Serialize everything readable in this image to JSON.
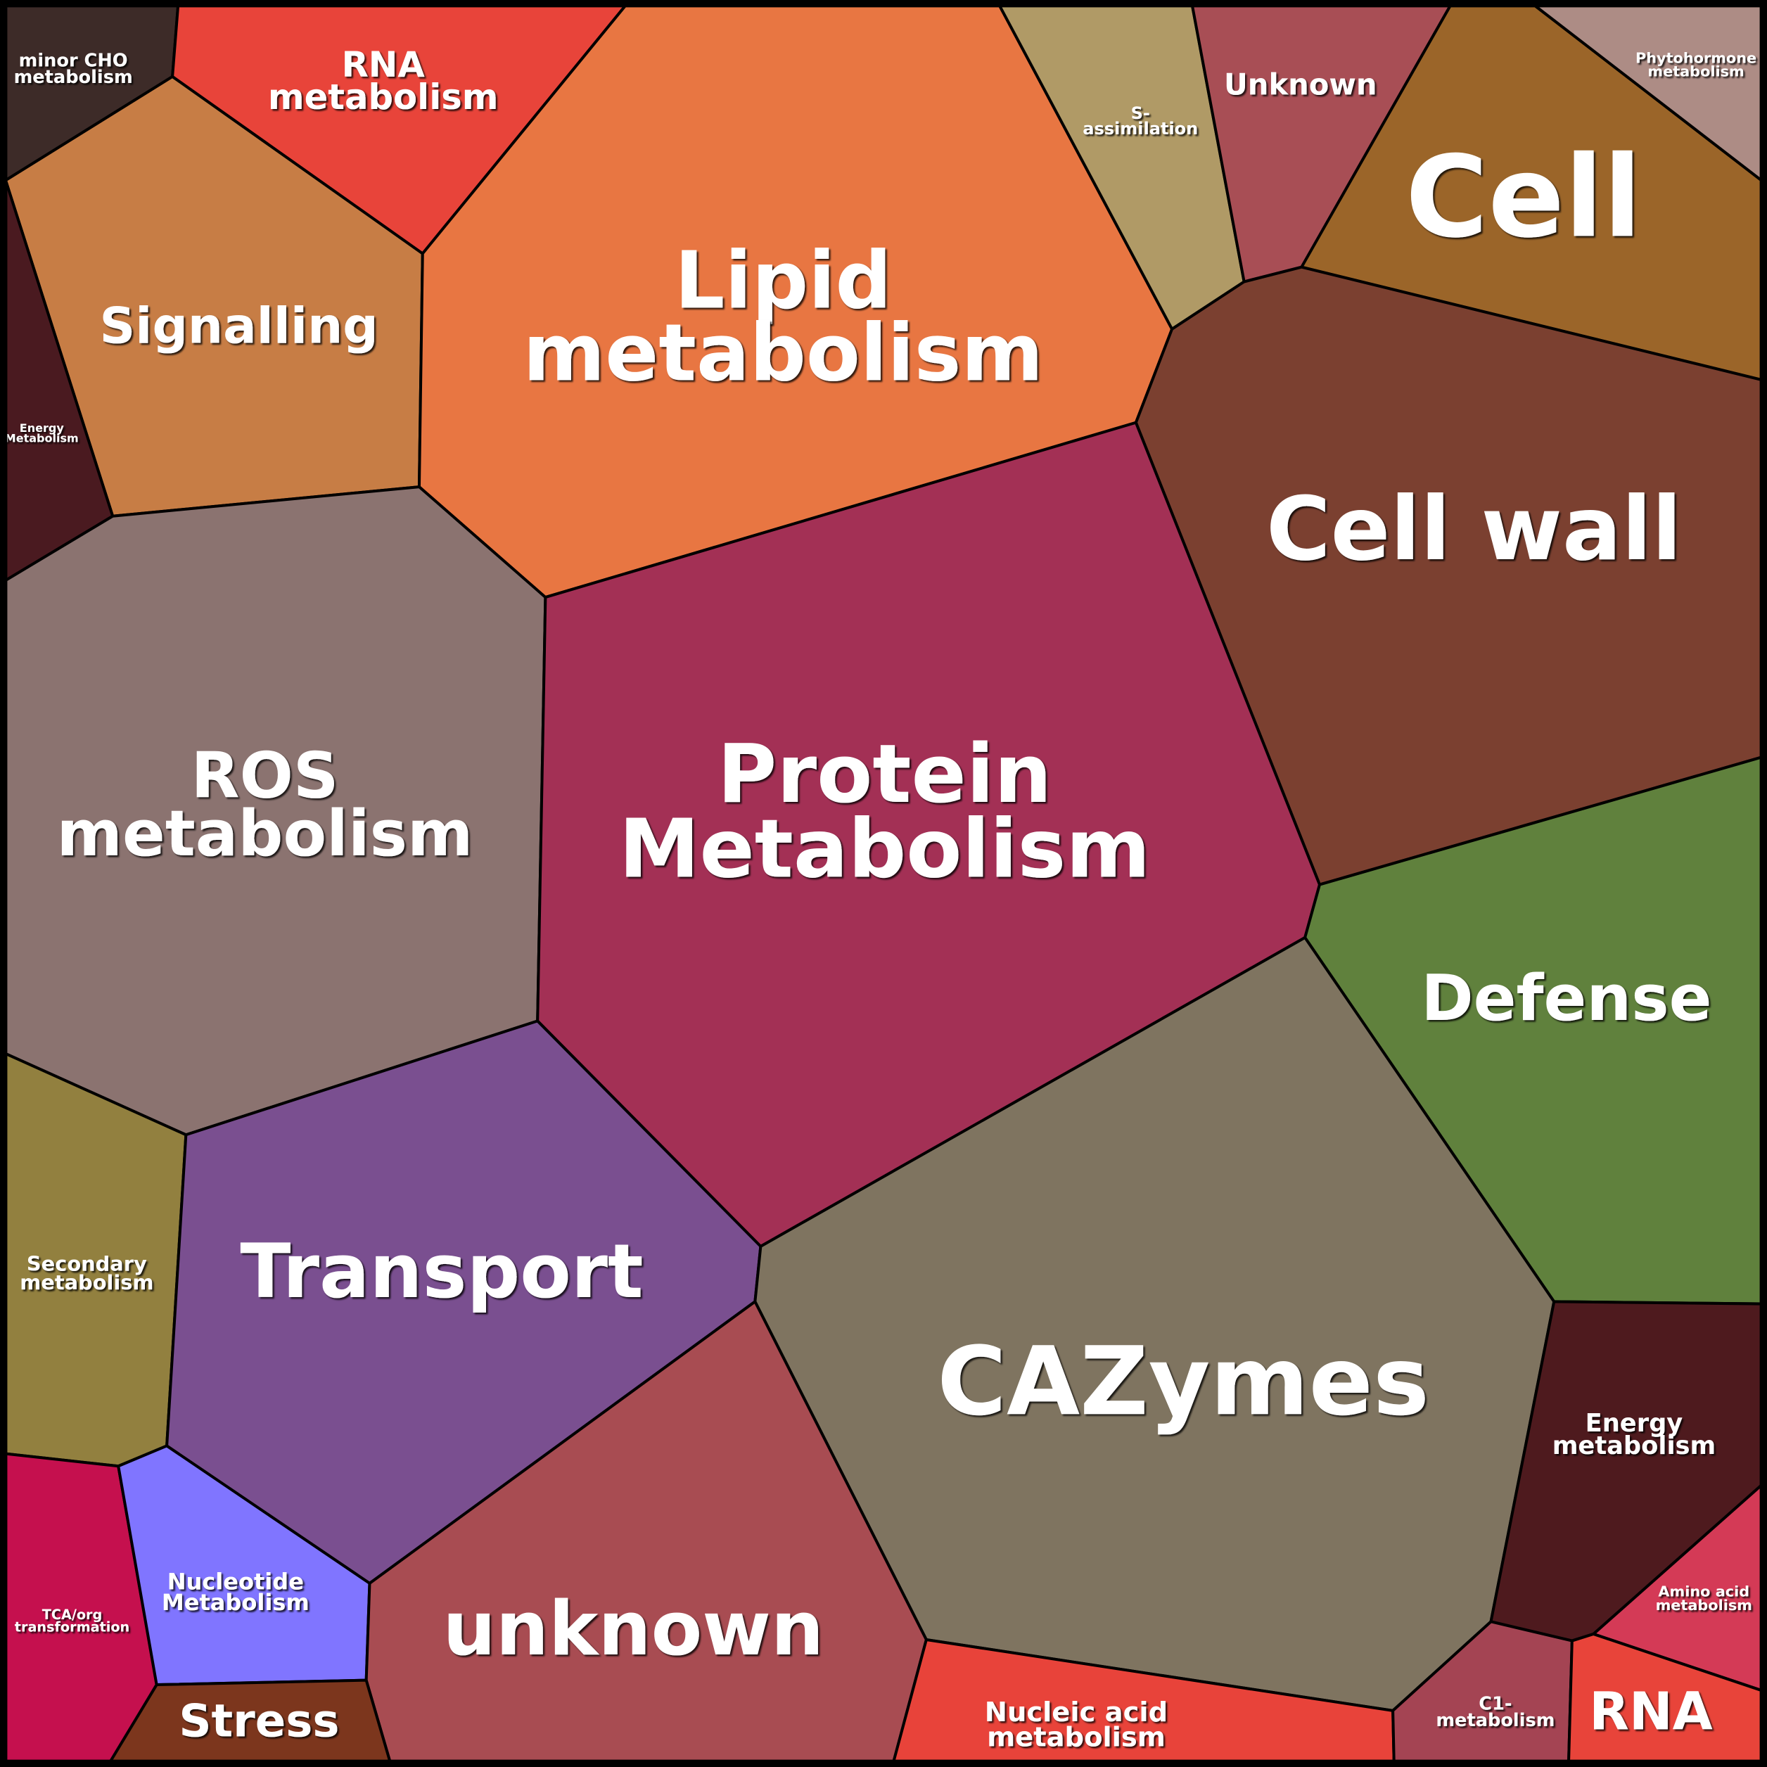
{
  "cells": [
    {
      "lines": [
        "minor CHO",
        "metabolism"
      ]
    },
    {
      "lines": [
        "RNA",
        "metabolism"
      ]
    },
    {
      "lines": [
        "Signalling"
      ]
    },
    {
      "lines": [
        "Energy",
        "Metabolism"
      ]
    },
    {
      "lines": [
        "Lipid",
        "metabolism"
      ]
    },
    {
      "lines": [
        "S-",
        "assimilation"
      ]
    },
    {
      "lines": [
        "Unknown"
      ]
    },
    {
      "lines": [
        "Cell"
      ]
    },
    {
      "lines": [
        "Phytohormone",
        "metabolism"
      ]
    },
    {
      "lines": [
        "Cell wall"
      ]
    },
    {
      "lines": [
        "ROS",
        "metabolism"
      ]
    },
    {
      "lines": [
        "Protein",
        "Metabolism"
      ]
    },
    {
      "lines": [
        "Defense"
      ]
    },
    {
      "lines": [
        "Secondary",
        "metabolism"
      ]
    },
    {
      "lines": [
        "Transport"
      ]
    },
    {
      "lines": [
        "CAZymes"
      ]
    },
    {
      "lines": [
        "Energy",
        "metabolism"
      ]
    },
    {
      "lines": [
        "TCA/org",
        "transformation"
      ]
    },
    {
      "lines": [
        "Nucleotide",
        "Metabolism"
      ]
    },
    {
      "lines": [
        "unknown"
      ]
    },
    {
      "lines": [
        "Stress"
      ]
    },
    {
      "lines": [
        "Nucleic acid",
        "metabolism"
      ]
    },
    {
      "lines": [
        "C1-",
        "metabolism"
      ]
    },
    {
      "lines": [
        "Amino acid",
        "metabolism"
      ]
    },
    {
      "lines": [
        "RNA"
      ]
    }
  ]
}
